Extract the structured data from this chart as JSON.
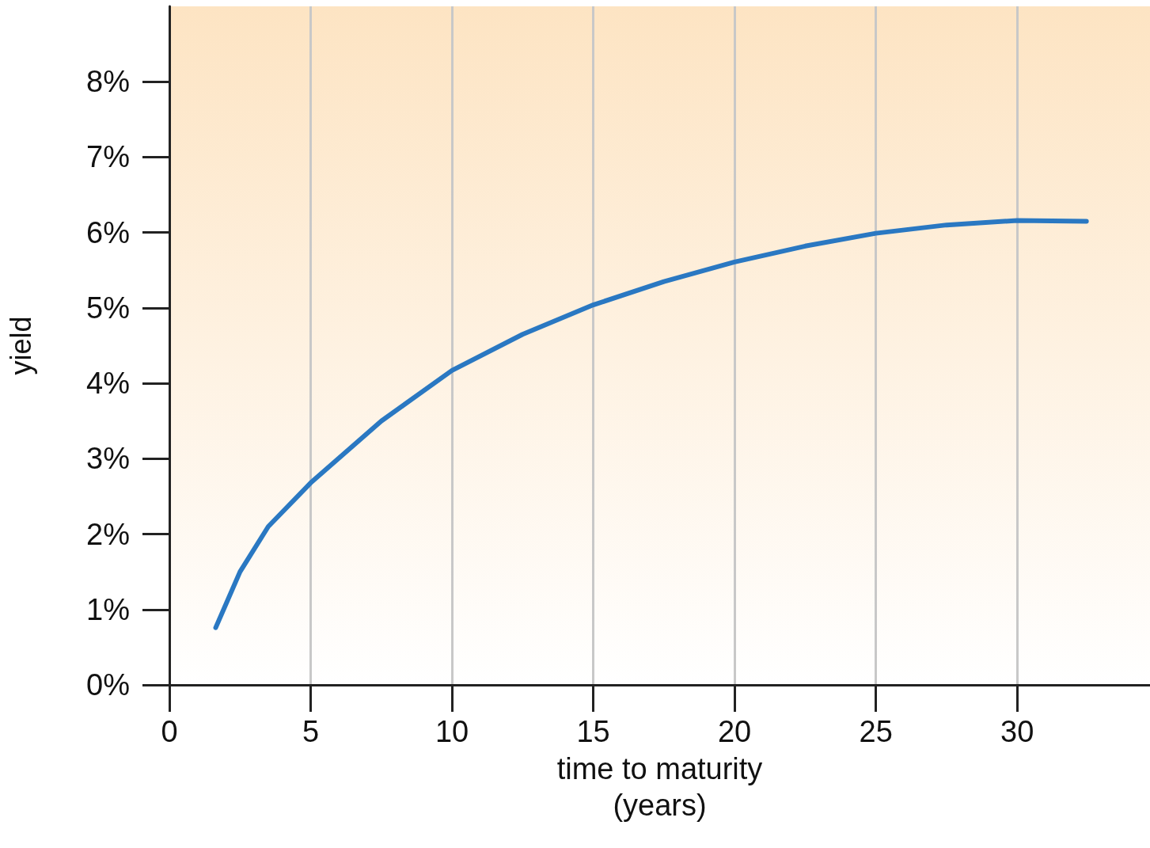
{
  "chart_data": {
    "type": "line",
    "xlabel": "time to maturity\n(years)",
    "ylabel": "yield",
    "x": [
      1.64,
      2.5,
      3.5,
      5,
      7.5,
      10,
      12.5,
      15,
      17.5,
      20,
      22.5,
      25,
      27.5,
      30,
      32.45
    ],
    "series": [
      {
        "color": "#2a78c2",
        "values": [
          0.76,
          1.5,
          2.1,
          2.68,
          3.5,
          4.17,
          4.65,
          5.04,
          5.35,
          5.61,
          5.82,
          5.99,
          6.1,
          6.16,
          6.15
        ]
      }
    ],
    "xlim": [
      0,
      34.7
    ],
    "xticks": [
      0,
      5,
      10,
      15,
      20,
      25,
      30
    ],
    "ylim": [
      0,
      9
    ],
    "yticks": [
      {
        "value": 0,
        "label": "0%"
      },
      {
        "value": 1,
        "label": "1%"
      },
      {
        "value": 2,
        "label": "2%"
      },
      {
        "value": 3,
        "label": "3%"
      },
      {
        "value": 4,
        "label": "4%"
      },
      {
        "value": 5,
        "label": "5%"
      },
      {
        "value": 6,
        "label": "6%"
      },
      {
        "value": 7,
        "label": "7%"
      },
      {
        "value": 8,
        "label": "8%"
      }
    ],
    "grid": "x",
    "marker": "none",
    "line_style": "solid"
  }
}
